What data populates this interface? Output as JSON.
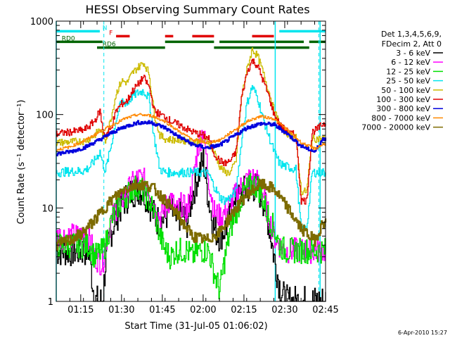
{
  "chart_data": {
    "type": "line",
    "title": "HESSI Observing Summary Count Rates",
    "xlabel": "Start Time (31-Jul-05 01:06:02)",
    "ylabel": "Count Rate (s⁻¹ detector⁻¹)",
    "y_scale": "log",
    "ylim": [
      1,
      1000
    ],
    "xlim_minutes": [
      0,
      99
    ],
    "x_tick_labels": [
      "01:15",
      "01:30",
      "01:45",
      "02:00",
      "02:15",
      "02:30",
      "02:45"
    ],
    "x_tick_minutes": [
      9,
      24,
      39,
      54,
      69,
      84,
      99
    ],
    "y_tick_labels": [
      "1",
      "10",
      "100",
      "1000"
    ],
    "y_tick_values": [
      1,
      10,
      100,
      1000
    ],
    "grid": false,
    "legend_placement": "right",
    "legend_header": [
      "Det 1,3,4,5,6,9,",
      "FDecim 2, Att 0"
    ],
    "timestamp": "6-Apr-2010 15:27",
    "flags": [
      {
        "name": "N",
        "color": "#00e5ee",
        "level": 780,
        "segments": [
          [
            0,
            16
          ],
          [
            82,
            99
          ]
        ]
      },
      {
        "name": "F",
        "color": "#e00000",
        "level": 690,
        "segments": [
          [
            22,
            27
          ],
          [
            40,
            43
          ],
          [
            50,
            58
          ],
          [
            72,
            80
          ]
        ]
      },
      {
        "name": "RD0",
        "color": "#006400",
        "level": 600,
        "segments": [
          [
            0,
            17
          ],
          [
            40,
            58
          ],
          [
            60,
            91
          ],
          [
            93,
            99
          ]
        ]
      },
      {
        "name": "RD6",
        "color": "#006400",
        "level": 520,
        "segments": [
          [
            15,
            40
          ],
          [
            58,
            93
          ]
        ]
      }
    ],
    "saa_markers_minutes": [
      17.5,
      96.5
    ],
    "night_markers_minutes": [
      0,
      80.5,
      97
    ],
    "series": [
      {
        "name": "3 - 6 keV",
        "color": "#000000",
        "x": [
          0,
          12,
          14,
          17,
          18,
          20,
          22,
          24,
          26,
          28,
          30,
          32,
          34,
          36,
          38,
          40,
          42,
          44,
          46,
          48,
          50,
          52,
          54,
          56,
          58,
          60,
          62,
          64,
          66,
          68,
          70,
          72,
          74,
          76,
          78,
          80,
          82,
          84,
          86,
          88,
          90,
          92,
          94,
          96,
          98
        ],
        "y": [
          3.5,
          3.5,
          1,
          1,
          2.5,
          5.5,
          8,
          11,
          13,
          15,
          16,
          15,
          12,
          8,
          7,
          8,
          10,
          7,
          9,
          7,
          14,
          22,
          32,
          12,
          6,
          5,
          6,
          8,
          11,
          14,
          16,
          17,
          16,
          12,
          7,
          3,
          1.5,
          1,
          1,
          1,
          1,
          1,
          1,
          1,
          1
        ]
      },
      {
        "name": "6 - 12 keV",
        "color": "#ff00ff",
        "x": [
          0,
          12,
          14,
          17,
          18,
          20,
          22,
          24,
          26,
          28,
          30,
          32,
          34,
          36,
          38,
          40,
          42,
          44,
          46,
          48,
          50,
          52,
          54,
          56,
          58,
          60,
          62,
          64,
          66,
          68,
          70,
          72,
          74,
          76,
          78,
          80,
          82,
          84,
          86,
          88,
          90,
          92,
          94,
          96,
          98
        ],
        "y": [
          5,
          5,
          3,
          2.5,
          4,
          7,
          10,
          12,
          15,
          18,
          21,
          20,
          16,
          10,
          8,
          10,
          13,
          9,
          11,
          9,
          18,
          45,
          70,
          20,
          9,
          8,
          9,
          11,
          14,
          17,
          20,
          21,
          19,
          14,
          8,
          5,
          4,
          3.5,
          3.5,
          3.5,
          3.5,
          3.5,
          3.5,
          3.5,
          3.5
        ]
      },
      {
        "name": "12 - 25 keV",
        "color": "#00e000",
        "x": [
          0,
          12,
          14,
          17,
          18,
          20,
          22,
          24,
          26,
          28,
          30,
          32,
          34,
          36,
          38,
          40,
          42,
          44,
          46,
          48,
          50,
          52,
          54,
          56,
          58,
          60,
          62,
          64,
          66,
          68,
          70,
          72,
          74,
          76,
          78,
          80,
          82,
          84,
          86,
          88,
          90,
          92,
          94,
          96,
          98
        ],
        "y": [
          4,
          4,
          3,
          3.5,
          4,
          7,
          10,
          12,
          14,
          16,
          17,
          15,
          12,
          9,
          5,
          3.5,
          3,
          3.5,
          3.5,
          3.5,
          3,
          3.5,
          3.5,
          3.5,
          2,
          1.3,
          3,
          6,
          9,
          13,
          16,
          18,
          17,
          12,
          8,
          6,
          4,
          3.5,
          3.5,
          3.5,
          3.5,
          3.5,
          3.5,
          3.5,
          3.5
        ]
      },
      {
        "name": "25 - 50 keV",
        "color": "#00e5ee",
        "x": [
          0,
          10,
          12,
          14,
          16,
          17,
          18,
          20,
          22,
          24,
          26,
          28,
          30,
          32,
          34,
          36,
          38,
          40,
          42,
          46,
          50,
          54,
          56,
          58,
          60,
          62,
          64,
          66,
          68,
          70,
          72,
          74,
          76,
          78,
          80,
          82,
          84,
          86,
          88,
          90,
          92,
          94,
          96,
          98
        ],
        "y": [
          24,
          25,
          27,
          32,
          40,
          30,
          25,
          45,
          90,
          140,
          130,
          160,
          170,
          180,
          150,
          55,
          26,
          24,
          24,
          24,
          24,
          24,
          23,
          17,
          13,
          12,
          13,
          15,
          50,
          130,
          200,
          150,
          90,
          60,
          40,
          30,
          28,
          27,
          26,
          6,
          6,
          24,
          24,
          24
        ]
      },
      {
        "name": "50 - 100 keV",
        "color": "#ccbb00",
        "x": [
          0,
          10,
          12,
          14,
          16,
          17,
          18,
          20,
          22,
          24,
          26,
          28,
          30,
          32,
          34,
          36,
          38,
          40,
          42,
          46,
          50,
          54,
          56,
          58,
          60,
          62,
          64,
          66,
          68,
          70,
          72,
          74,
          76,
          78,
          80,
          82,
          84,
          86,
          88,
          90,
          92,
          94,
          96,
          98
        ],
        "y": [
          50,
          52,
          55,
          60,
          70,
          60,
          52,
          90,
          170,
          230,
          220,
          280,
          320,
          360,
          280,
          100,
          60,
          55,
          54,
          53,
          52,
          52,
          51,
          40,
          28,
          24,
          24,
          32,
          150,
          300,
          500,
          420,
          280,
          180,
          110,
          80,
          65,
          60,
          58,
          15,
          15,
          55,
          55,
          55
        ]
      },
      {
        "name": "100 - 300 keV",
        "color": "#e00000",
        "x": [
          0,
          10,
          12,
          14,
          16,
          17,
          18,
          20,
          22,
          24,
          26,
          28,
          30,
          32,
          34,
          36,
          38,
          40,
          42,
          46,
          50,
          54,
          56,
          58,
          60,
          62,
          64,
          66,
          68,
          70,
          72,
          74,
          76,
          78,
          80,
          82,
          84,
          86,
          88,
          90,
          92,
          94,
          96,
          98
        ],
        "y": [
          62,
          68,
          75,
          85,
          110,
          70,
          60,
          70,
          110,
          130,
          140,
          180,
          210,
          250,
          200,
          110,
          100,
          95,
          85,
          75,
          65,
          60,
          55,
          38,
          32,
          30,
          32,
          40,
          150,
          280,
          380,
          330,
          230,
          160,
          100,
          78,
          68,
          63,
          60,
          12,
          12,
          65,
          70,
          80
        ]
      },
      {
        "name": "300 - 800 keV",
        "color": "#0000dd",
        "x": [
          0,
          5,
          10,
          15,
          20,
          25,
          30,
          35,
          40,
          45,
          50,
          55,
          60,
          65,
          70,
          75,
          80,
          85,
          90,
          95,
          98
        ],
        "y": [
          38,
          40,
          44,
          52,
          63,
          74,
          82,
          82,
          72,
          58,
          48,
          44,
          47,
          58,
          72,
          80,
          78,
          62,
          46,
          40,
          55
        ]
      },
      {
        "name": "800 - 7000 keV",
        "color": "#ff8800",
        "x": [
          0,
          5,
          10,
          15,
          20,
          25,
          30,
          35,
          40,
          45,
          50,
          55,
          60,
          65,
          70,
          75,
          80,
          85,
          90,
          95,
          98
        ],
        "y": [
          42,
          45,
          52,
          63,
          76,
          90,
          100,
          97,
          84,
          66,
          54,
          50,
          53,
          67,
          84,
          96,
          90,
          68,
          50,
          43,
          48
        ]
      },
      {
        "name": "7000 - 20000 keV",
        "color": "#7d6b00",
        "x": [
          0,
          5,
          10,
          15,
          20,
          25,
          30,
          35,
          40,
          45,
          50,
          55,
          60,
          65,
          70,
          75,
          80,
          85,
          90,
          95,
          98
        ],
        "y": [
          4,
          4.5,
          5.5,
          8,
          12,
          16,
          18,
          17,
          12,
          8,
          5,
          4.5,
          5.5,
          9,
          14,
          18,
          16,
          10,
          6,
          4.5,
          7
        ]
      }
    ]
  }
}
